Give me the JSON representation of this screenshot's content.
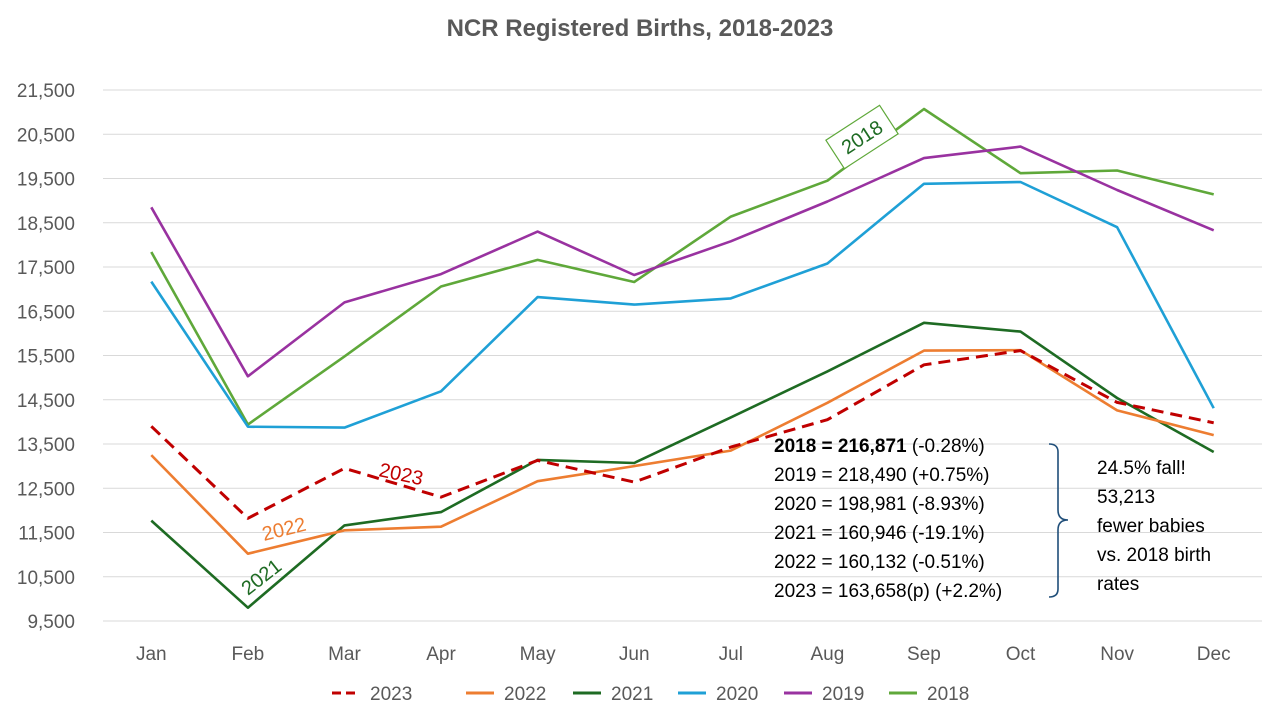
{
  "chart_data": {
    "type": "line",
    "title": "NCR Registered Births, 2018-2023",
    "xlabel": "",
    "ylabel": "",
    "ylim": [
      9500,
      21500
    ],
    "yticks": [
      "9,500",
      "10,500",
      "11,500",
      "12,500",
      "13,500",
      "14,500",
      "15,500",
      "16,500",
      "17,500",
      "18,500",
      "19,500",
      "20,500",
      "21,500"
    ],
    "categories": [
      "Jan",
      "Feb",
      "Mar",
      "Apr",
      "May",
      "Jun",
      "Jul",
      "Aug",
      "Sep",
      "Oct",
      "Nov",
      "Dec"
    ],
    "grid": true,
    "legend_position": "bottom",
    "series": [
      {
        "name": "2023",
        "color": "#C00000",
        "dashed": true,
        "values": [
          13900,
          11820,
          12950,
          12300,
          13130,
          12640,
          13430,
          14050,
          15290,
          15610,
          14440,
          13980
        ]
      },
      {
        "name": "2022",
        "color": "#ED7D31",
        "dashed": false,
        "values": [
          13250,
          11020,
          11550,
          11630,
          12660,
          13000,
          13350,
          14430,
          15610,
          15620,
          14260,
          13700
        ]
      },
      {
        "name": "2021",
        "color": "#1E6B23",
        "dashed": false,
        "values": [
          11770,
          9800,
          11660,
          11960,
          13140,
          13070,
          14100,
          15140,
          16240,
          16040,
          14540,
          13320
        ]
      },
      {
        "name": "2020",
        "color": "#1FA0D6",
        "dashed": false,
        "values": [
          17170,
          13890,
          13870,
          14690,
          16820,
          16650,
          16790,
          17580,
          19380,
          19420,
          18400,
          14310
        ]
      },
      {
        "name": "2019",
        "color": "#9932A0",
        "dashed": false,
        "values": [
          18850,
          15030,
          16700,
          17340,
          18300,
          17320,
          18080,
          18980,
          19960,
          20220,
          19240,
          18330
        ]
      },
      {
        "name": "2018",
        "color": "#5FA83A",
        "dashed": false,
        "values": [
          17840,
          13940,
          15480,
          17060,
          17660,
          17160,
          18640,
          19450,
          21070,
          19620,
          19680,
          19140
        ]
      }
    ],
    "annotations": {
      "series_labels": [
        {
          "text": "2023",
          "color": "#C00000"
        },
        {
          "text": "2022",
          "color": "#ED7D31"
        },
        {
          "text": "2021",
          "color": "#1E6B23"
        },
        {
          "text": "2018",
          "color": "#1E6B23"
        }
      ],
      "summary_lines": [
        {
          "bold": "2018 = 216,871",
          "rest": " (-0.28%)"
        },
        {
          "bold": "",
          "rest": "2019 = 218,490 (+0.75%)"
        },
        {
          "bold": "",
          "rest": "2020 = 198,981 (-8.93%)"
        },
        {
          "bold": "",
          "rest": "2021 = 160,946 (-19.1%)"
        },
        {
          "bold": "",
          "rest": "2022 = 160,132 (-0.51%)"
        },
        {
          "bold": "",
          "rest": "2023 = 163,658(p) (+2.2%)"
        }
      ],
      "callout_lines": [
        "24.5% fall!",
        "53,213",
        "fewer babies",
        "vs. 2018 birth",
        "rates"
      ],
      "brace_color": "#1F4E79"
    }
  }
}
